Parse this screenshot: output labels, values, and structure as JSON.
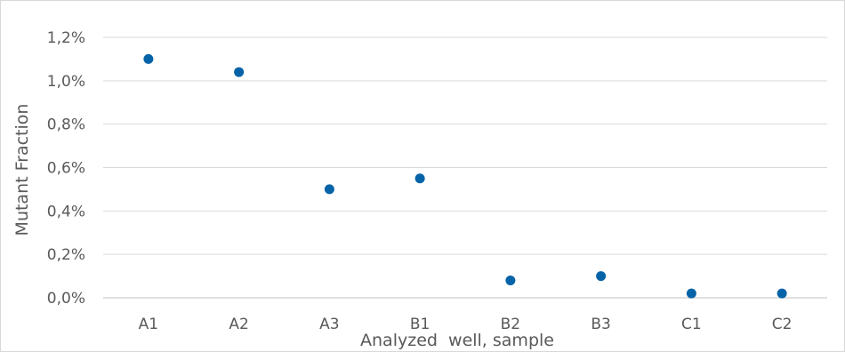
{
  "chart_data": {
    "type": "scatter",
    "title": "",
    "xlabel": "Analyzed  well, sample",
    "ylabel": "Mutant Fraction",
    "categories": [
      "A1",
      "A2",
      "A3",
      "B1",
      "B2",
      "B3",
      "C1",
      "C2"
    ],
    "series": [
      {
        "values": [
          1.1,
          1.04,
          0.5,
          0.55,
          0.08,
          0.1,
          0.02,
          0.02
        ],
        "color": "#0563a8"
      }
    ],
    "ylim": [
      0,
      1.2
    ],
    "yticks": [
      "0,0%",
      "0,2%",
      "0,4%",
      "0,6%",
      "0,8%",
      "1,0%",
      "1,2%"
    ],
    "ytick_values": [
      0,
      0.2,
      0.4,
      0.6,
      0.8,
      1.0,
      1.2
    ],
    "grid": true,
    "legend": "none"
  }
}
